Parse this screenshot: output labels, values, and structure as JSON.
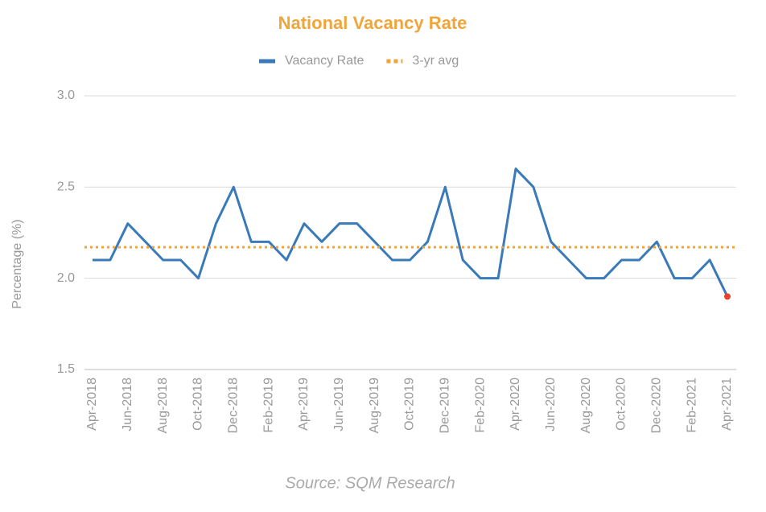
{
  "chart_data": {
    "type": "line",
    "title": "National Vacancy Rate",
    "y_label": "Percentage (%)",
    "source": "Source: SQM Research",
    "categories": [
      "Apr-2018",
      null,
      "Jun-2018",
      null,
      "Aug-2018",
      null,
      "Oct-2018",
      null,
      "Dec-2018",
      null,
      "Feb-2019",
      null,
      "Apr-2019",
      null,
      "Jun-2019",
      null,
      "Aug-2019",
      null,
      "Oct-2019",
      null,
      "Dec-2019",
      null,
      "Feb-2020",
      null,
      "Apr-2020",
      null,
      "Jun-2020",
      null,
      "Aug-2020",
      null,
      "Oct-2020",
      null,
      "Dec-2020",
      null,
      "Feb-2021",
      null,
      "Apr-2021"
    ],
    "series": [
      {
        "name": "Vacancy Rate",
        "color": "#3a7ab8",
        "values": [
          2.1,
          2.1,
          2.3,
          2.2,
          2.1,
          2.1,
          2.0,
          2.3,
          2.5,
          2.2,
          2.2,
          2.1,
          2.3,
          2.2,
          2.3,
          2.3,
          2.2,
          2.1,
          2.1,
          2.2,
          2.5,
          2.1,
          2.0,
          2.0,
          2.6,
          2.5,
          2.2,
          2.1,
          2.0,
          2.0,
          2.1,
          2.1,
          2.2,
          2.0,
          2.0,
          2.1,
          1.9
        ]
      },
      {
        "name": "3-yr avg",
        "color": "#f0a53a",
        "style": "dotted",
        "value": 2.17
      }
    ],
    "last_point_color": "#e8412c",
    "ylim": [
      1.5,
      3.0
    ],
    "yticks": [
      {
        "value": 1.5,
        "label": "1.5"
      },
      {
        "value": 2,
        "label": "2.0"
      },
      {
        "value": 2.5,
        "label": "2.5"
      },
      {
        "value": 3,
        "label": "3.0"
      }
    ],
    "grid": true,
    "legend": "top"
  }
}
